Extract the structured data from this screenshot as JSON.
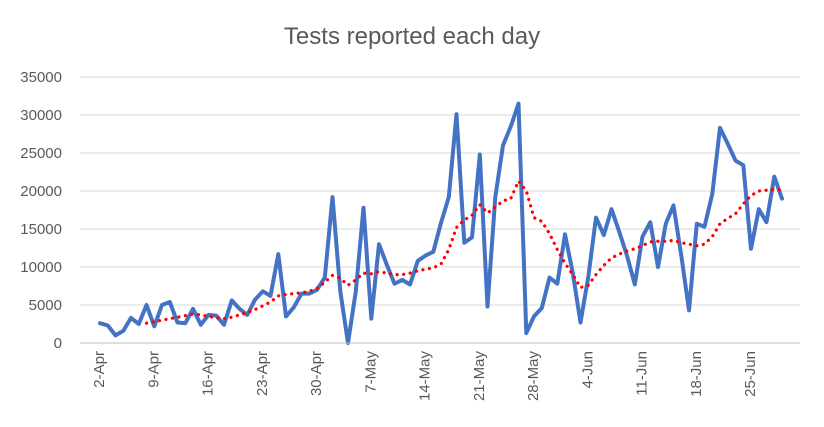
{
  "chart_data": {
    "type": "line",
    "title": "Tests reported each day",
    "xlabel": "",
    "ylabel": "",
    "ylim": [
      0,
      35000
    ],
    "y_ticks": [
      0,
      5000,
      10000,
      15000,
      20000,
      25000,
      30000,
      35000
    ],
    "y_tick_labels": [
      "0",
      "5000",
      "10000",
      "15000",
      "20000",
      "25000",
      "30000",
      "35000"
    ],
    "x_tick_labels": [
      "2-Apr",
      "9-Apr",
      "16-Apr",
      "23-Apr",
      "30-Apr",
      "7-May",
      "14-May",
      "21-May",
      "28-May",
      "4-Jun",
      "11-Jun",
      "18-Jun",
      "25-Jun"
    ],
    "x_tick_step_days": 7,
    "grid": "horizontal",
    "legend": "none",
    "colors": {
      "series": "#4472C4",
      "trend": "#FF0000",
      "grid": "#d9d9d9",
      "axis": "#bfbfbf",
      "text": "#595959"
    },
    "series": [
      {
        "style": "solid",
        "values": [
          2600,
          2300,
          1000,
          1600,
          3300,
          2500,
          5000,
          2200,
          5000,
          5400,
          2700,
          2600,
          4500,
          2400,
          3700,
          3600,
          2400,
          5600,
          4500,
          3700,
          5700,
          6800,
          6200,
          11700,
          3500,
          4700,
          6500,
          6500,
          7000,
          8600,
          19200,
          6800,
          0,
          6800,
          17800,
          3200,
          13000,
          10300,
          7800,
          8300,
          7700,
          10800,
          11500,
          12000,
          15800,
          19200,
          30100,
          13200,
          13900,
          24800,
          4800,
          19200,
          26000,
          28500,
          31500,
          1300,
          3500,
          4600,
          8600,
          7800,
          14300,
          9200,
          2700,
          8700,
          16500,
          14200,
          17600,
          14600,
          11500,
          7700,
          14000,
          15900,
          10000,
          15700,
          18100,
          11500,
          4300,
          15700,
          15300,
          19600,
          28300,
          26200,
          24000,
          23400,
          12400,
          17600,
          15900,
          21900,
          19000
        ]
      },
      {
        "style": "dotted",
        "values": [
          null,
          null,
          null,
          null,
          null,
          null,
          2600,
          2800,
          3000,
          3200,
          3400,
          3600,
          3800,
          3700,
          3500,
          3300,
          3200,
          3400,
          3700,
          4000,
          4400,
          4900,
          5400,
          6200,
          6400,
          6500,
          6600,
          6800,
          7200,
          8000,
          8900,
          8500,
          7600,
          8300,
          9200,
          9100,
          9400,
          9200,
          9000,
          9000,
          9200,
          9500,
          9700,
          9900,
          10400,
          12300,
          15200,
          16200,
          16800,
          18200,
          17100,
          17900,
          18700,
          19000,
          21300,
          20000,
          16500,
          16000,
          14400,
          12300,
          10500,
          9000,
          7300,
          7600,
          9000,
          10200,
          11200,
          11700,
          12100,
          12400,
          12800,
          13300,
          13400,
          13400,
          13500,
          13200,
          13000,
          12800,
          13000,
          14000,
          15700,
          16400,
          17000,
          18300,
          19400,
          20000,
          20100,
          20200,
          20100
        ]
      }
    ]
  }
}
